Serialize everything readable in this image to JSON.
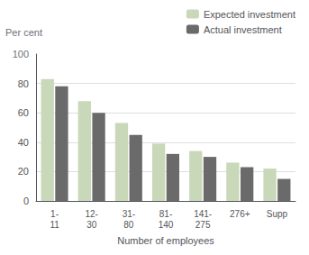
{
  "chart_data": {
    "type": "bar",
    "categories": [
      "1-\n11",
      "12-\n30",
      "31-\n80",
      "81-\n140",
      "141-\n275",
      "276+",
      "Supp"
    ],
    "series": [
      {
        "name": "Expected investment",
        "color": "#c8d8b8",
        "values": [
          83,
          68,
          53,
          39,
          34,
          26,
          22
        ]
      },
      {
        "name": "Actual investment",
        "color": "#6a6a6a",
        "values": [
          78,
          60,
          45,
          32,
          30,
          23,
          15
        ]
      }
    ],
    "xlabel": "Number of employees",
    "ylabel": "Per cent",
    "annotations": [
      "100"
    ],
    "ylim": [
      0,
      100
    ],
    "yticks": [
      0,
      20,
      40,
      60,
      80
    ],
    "grid": true,
    "legend": "upper right"
  }
}
